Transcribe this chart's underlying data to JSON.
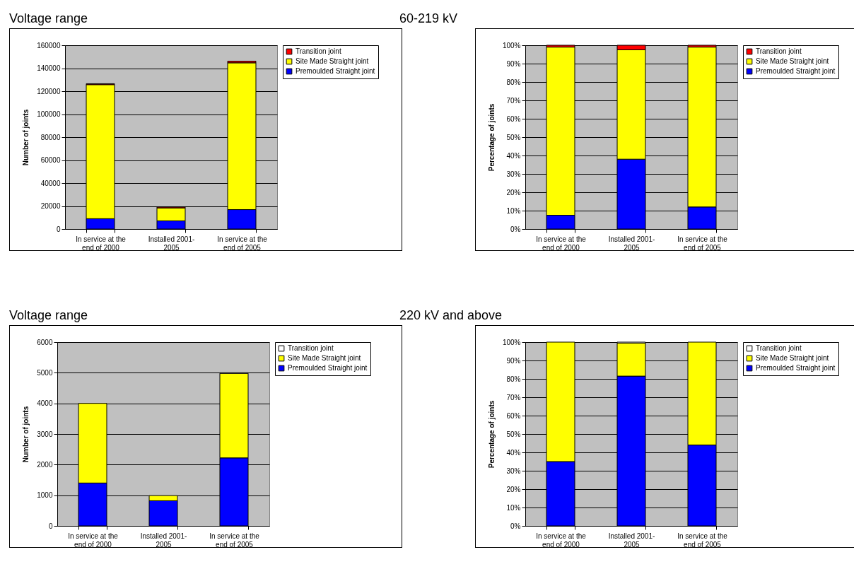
{
  "chart_data": [
    {
      "type": "bar",
      "title": "Voltage range",
      "stacked": true,
      "grid": "y",
      "legend": "right",
      "ylabel": "Number of joints",
      "categories": [
        "In service at the\nend of 2000",
        "Installed 2001-\n2005",
        "In service at the\nend of 2005"
      ],
      "ylim": [
        0,
        160000
      ],
      "yticks": [
        0,
        20000,
        40000,
        60000,
        80000,
        100000,
        120000,
        140000,
        160000
      ],
      "series": [
        {
          "name": "Premoulded Straight joint",
          "color": "#0000ff",
          "values": [
            9000,
            7100,
            16900
          ]
        },
        {
          "name": "Site Made Straight joint",
          "color": "#ffff00",
          "values": [
            116700,
            11300,
            127800
          ]
        },
        {
          "name": "Transition joint",
          "color": "#ff0000",
          "values": [
            800,
            700,
            1400
          ]
        }
      ]
    },
    {
      "type": "bar",
      "title": "60-219 kV",
      "stacked": true,
      "grid": "y",
      "legend": "right",
      "ylabel": "Percentage of joints",
      "categories": [
        "In service at the\nend of 2000",
        "Installed 2001-\n2005",
        "In service at the\nend of 2005"
      ],
      "ylim": [
        0,
        100
      ],
      "yticks": [
        {
          "value": 0,
          "label": "0%"
        },
        {
          "value": 10,
          "label": "10%"
        },
        {
          "value": 20,
          "label": "20%"
        },
        {
          "value": 30,
          "label": "30%"
        },
        {
          "value": 40,
          "label": "40%"
        },
        {
          "value": 50,
          "label": "50%"
        },
        {
          "value": 60,
          "label": "60%"
        },
        {
          "value": 70,
          "label": "70%"
        },
        {
          "value": 80,
          "label": "80%"
        },
        {
          "value": 90,
          "label": "90%"
        },
        {
          "value": 100,
          "label": "100%"
        }
      ],
      "series": [
        {
          "name": "Premoulded Straight joint",
          "color": "#0000ff",
          "values": [
            7.5,
            38,
            12
          ]
        },
        {
          "name": "Site Made Straight joint",
          "color": "#ffff00",
          "values": [
            91.5,
            59.5,
            87
          ]
        },
        {
          "name": "Transition joint",
          "color": "#ff0000",
          "values": [
            1,
            2.5,
            1
          ]
        }
      ]
    },
    {
      "type": "bar",
      "title": "Voltage range",
      "stacked": true,
      "grid": "y",
      "legend": "right",
      "ylabel": "Number of joints",
      "categories": [
        "In service at the\nend of 2000",
        "Installed 2001-\n2005",
        "In service at the\nend of 2005"
      ],
      "ylim": [
        0,
        6000
      ],
      "yticks": [
        0,
        1000,
        2000,
        3000,
        4000,
        5000,
        6000
      ],
      "series": [
        {
          "name": "Premoulded Straight joint",
          "color": "#0000ff",
          "values": [
            1400,
            820,
            2220
          ]
        },
        {
          "name": "Site Made Straight joint",
          "color": "#ffff00",
          "values": [
            2600,
            170,
            2760
          ]
        },
        {
          "name": "Transition joint",
          "color": "#ffffff",
          "values": [
            null,
            null,
            20
          ]
        }
      ]
    },
    {
      "type": "bar",
      "title": "220 kV and above",
      "stacked": true,
      "grid": "y",
      "legend": "right",
      "ylabel": "Percentage of joints",
      "categories": [
        "In service at the\nend of 2000",
        "Installed 2001-\n2005",
        "In service at the\nend of 2005"
      ],
      "ylim": [
        0,
        100
      ],
      "yticks": [
        {
          "value": 0,
          "label": "0%"
        },
        {
          "value": 10,
          "label": "10%"
        },
        {
          "value": 20,
          "label": "20%"
        },
        {
          "value": 30,
          "label": "30%"
        },
        {
          "value": 40,
          "label": "40%"
        },
        {
          "value": 50,
          "label": "50%"
        },
        {
          "value": 60,
          "label": "60%"
        },
        {
          "value": 70,
          "label": "70%"
        },
        {
          "value": 80,
          "label": "80%"
        },
        {
          "value": 90,
          "label": "90%"
        },
        {
          "value": 100,
          "label": "100%"
        }
      ],
      "series": [
        {
          "name": "Premoulded Straight joint",
          "color": "#0000ff",
          "values": [
            35,
            81.5,
            44
          ]
        },
        {
          "name": "Site Made Straight joint",
          "color": "#ffff00",
          "values": [
            65,
            18,
            56
          ]
        },
        {
          "name": "Transition joint",
          "color": "#ffffff",
          "values": [
            null,
            0.5,
            null
          ]
        }
      ]
    }
  ]
}
